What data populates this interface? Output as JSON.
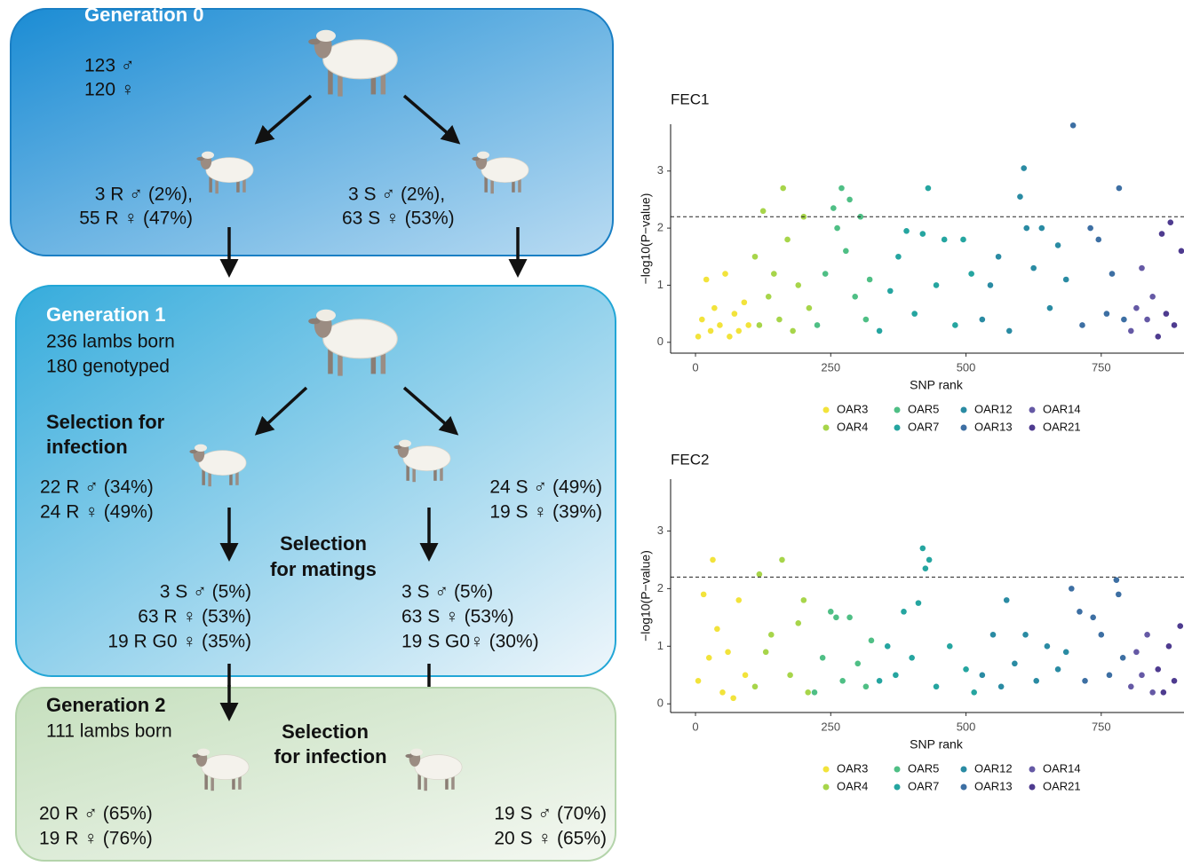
{
  "diagram": {
    "gen0": {
      "title": "Generation 0",
      "lines": [
        "123 ♂",
        "120 ♀"
      ],
      "left": [
        "3 R ♂ (2%),",
        "55 R ♀ (47%)"
      ],
      "right": [
        "3 S ♂ (2%),",
        "63 S ♀ (53%)"
      ]
    },
    "gen1": {
      "title": "Generation 1",
      "lines": [
        "236 lambs born",
        "180 genotyped"
      ],
      "selection_infection": [
        "Selection for",
        "infection"
      ],
      "left": [
        "22 R ♂ (34%)",
        "24 R ♀ (49%)"
      ],
      "right": [
        "24 S ♂ (49%)",
        "19 S ♀ (39%)"
      ],
      "selection_matings": [
        "Selection",
        "for matings"
      ],
      "left_matings": [
        "3 S ♂ (5%)",
        "63 R ♀ (53%)",
        "19 R G0 ♀ (35%)"
      ],
      "right_matings": [
        "3 S ♂ (5%)",
        "63 S ♀ (53%)",
        "19 S G0♀ (30%)"
      ]
    },
    "gen2": {
      "title": "Generation 2",
      "lines": [
        "111 lambs born"
      ],
      "selection_infection": [
        "Selection",
        "for infection"
      ],
      "left": [
        "20 R ♂ (65%)",
        "19 R ♀ (76%)"
      ],
      "right": [
        "19 S ♂ (70%)",
        "20 S ♀ (65%)"
      ]
    }
  },
  "chart_data": [
    {
      "type": "scatter",
      "title": "FEC1",
      "xlabel": "SNP rank",
      "ylabel": "−log10(P−value)",
      "xlim": [
        -46,
        903
      ],
      "ylim": [
        -0.19,
        3.82
      ],
      "xticks": [
        0,
        250,
        500,
        750
      ],
      "yticks": [
        0,
        1,
        2,
        3
      ],
      "hline": 2.2,
      "series": [
        {
          "name": "OAR3",
          "color": "#f2e33b",
          "x": [
            5,
            12,
            20,
            28,
            35,
            45,
            55,
            63,
            72,
            80,
            90,
            98
          ],
          "values": [
            0.1,
            0.4,
            1.1,
            0.2,
            0.6,
            0.3,
            1.2,
            0.1,
            0.5,
            0.2,
            0.7,
            0.3
          ]
        },
        {
          "name": "OAR4",
          "color": "#a7d54a",
          "x": [
            110,
            118,
            125,
            135,
            145,
            155,
            162,
            170,
            180,
            190,
            200,
            210
          ],
          "values": [
            1.5,
            0.3,
            2.3,
            0.8,
            1.2,
            0.4,
            2.7,
            1.8,
            0.2,
            1.0,
            2.2,
            0.6
          ]
        },
        {
          "name": "OAR5",
          "color": "#4fbf85",
          "x": [
            225,
            240,
            255,
            262,
            270,
            278,
            285,
            295,
            305,
            315,
            322
          ],
          "values": [
            0.3,
            1.2,
            2.35,
            2.0,
            2.7,
            1.6,
            2.5,
            0.8,
            2.2,
            0.4,
            1.1
          ]
        },
        {
          "name": "OAR7",
          "color": "#25a5a0",
          "x": [
            340,
            360,
            375,
            390,
            405,
            420,
            430,
            445,
            460,
            480,
            495,
            510
          ],
          "values": [
            0.2,
            0.9,
            1.5,
            1.95,
            0.5,
            1.9,
            2.7,
            1.0,
            1.8,
            0.3,
            1.8,
            1.2
          ]
        },
        {
          "name": "OAR12",
          "color": "#2a8ba3",
          "x": [
            530,
            545,
            560,
            580,
            600,
            607,
            612,
            625,
            640,
            655,
            670,
            685
          ],
          "values": [
            0.4,
            1.0,
            1.5,
            0.2,
            2.55,
            3.05,
            2.0,
            1.3,
            2.0,
            0.6,
            1.7,
            1.1
          ]
        },
        {
          "name": "OAR13",
          "color": "#3d6fa3",
          "x": [
            698,
            715,
            730,
            745,
            760,
            770,
            783,
            792
          ],
          "values": [
            3.8,
            0.3,
            2.0,
            1.8,
            0.5,
            1.2,
            2.7,
            0.4
          ]
        },
        {
          "name": "OAR14",
          "color": "#6559a5",
          "x": [
            805,
            815,
            825,
            835,
            845
          ],
          "values": [
            0.2,
            0.6,
            1.3,
            0.4,
            0.8
          ]
        },
        {
          "name": "OAR21",
          "color": "#4e3b8f",
          "x": [
            855,
            862,
            870,
            878,
            885,
            898
          ],
          "values": [
            0.1,
            1.9,
            0.5,
            2.1,
            0.3,
            1.6
          ]
        }
      ]
    },
    {
      "type": "scatter",
      "title": "FEC2",
      "xlabel": "SNP rank",
      "ylabel": "−log10(P−value)",
      "xlim": [
        -46,
        903
      ],
      "ylim": [
        -0.15,
        3.9
      ],
      "xticks": [
        0,
        250,
        500,
        750
      ],
      "yticks": [
        0,
        1,
        2,
        3
      ],
      "hline": 2.2,
      "series": [
        {
          "name": "OAR3",
          "color": "#f2e33b",
          "x": [
            5,
            15,
            25,
            32,
            40,
            50,
            60,
            70,
            80,
            92
          ],
          "values": [
            0.4,
            1.9,
            0.8,
            2.5,
            1.3,
            0.2,
            0.9,
            0.1,
            1.8,
            0.5
          ]
        },
        {
          "name": "OAR4",
          "color": "#a7d54a",
          "x": [
            110,
            118,
            130,
            140,
            160,
            175,
            190,
            200,
            208
          ],
          "values": [
            0.3,
            2.25,
            0.9,
            1.2,
            2.5,
            0.5,
            1.4,
            1.8,
            0.2
          ]
        },
        {
          "name": "OAR5",
          "color": "#4fbf85",
          "x": [
            220,
            235,
            250,
            260,
            272,
            285,
            300,
            315,
            325
          ],
          "values": [
            0.2,
            0.8,
            1.6,
            1.5,
            0.4,
            1.5,
            0.7,
            0.3,
            1.1
          ]
        },
        {
          "name": "OAR7",
          "color": "#25a5a0",
          "x": [
            340,
            355,
            370,
            385,
            400,
            412,
            420,
            425,
            432,
            445,
            470,
            500,
            515
          ],
          "values": [
            0.4,
            1.0,
            0.5,
            1.6,
            0.8,
            1.75,
            2.7,
            2.35,
            2.5,
            0.3,
            1.0,
            0.6,
            0.2
          ]
        },
        {
          "name": "OAR12",
          "color": "#2a8ba3",
          "x": [
            530,
            550,
            565,
            575,
            590,
            610,
            630,
            650,
            670,
            685
          ],
          "values": [
            0.5,
            1.2,
            0.3,
            1.8,
            0.7,
            1.2,
            0.4,
            1.0,
            0.6,
            0.9
          ]
        },
        {
          "name": "OAR13",
          "color": "#3d6fa3",
          "x": [
            695,
            710,
            720,
            735,
            750,
            765,
            778,
            782,
            790
          ],
          "values": [
            2.0,
            1.6,
            0.4,
            1.5,
            1.2,
            0.5,
            2.15,
            1.9,
            0.8
          ]
        },
        {
          "name": "OAR14",
          "color": "#6559a5",
          "x": [
            805,
            815,
            825,
            835,
            845
          ],
          "values": [
            0.3,
            0.9,
            0.5,
            1.2,
            0.2
          ]
        },
        {
          "name": "OAR21",
          "color": "#4e3b8f",
          "x": [
            855,
            865,
            875,
            885,
            896
          ],
          "values": [
            0.6,
            0.2,
            1.0,
            0.4,
            1.35
          ]
        }
      ]
    }
  ]
}
